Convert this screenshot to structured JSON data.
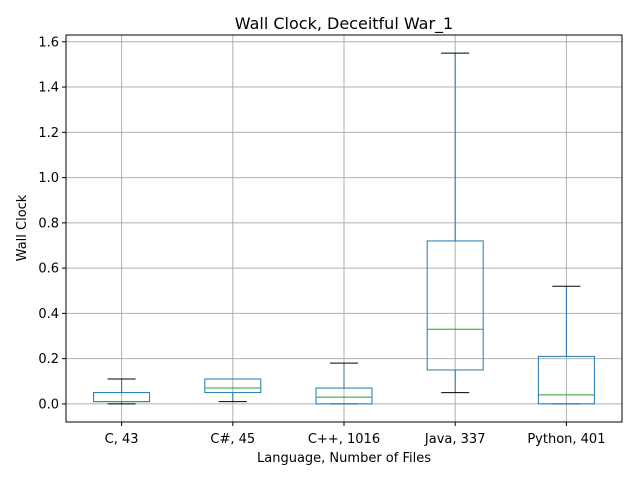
{
  "chart_data": {
    "type": "box",
    "title": "Wall Clock, Deceitful War_1",
    "xlabel": "Language, Number of Files",
    "ylabel": "Wall Clock",
    "ylim": [
      -0.08,
      1.63
    ],
    "yticks": [
      "0.0",
      "0.2",
      "0.4",
      "0.6",
      "0.8",
      "1.0",
      "1.2",
      "1.4",
      "1.6"
    ],
    "grid": true,
    "categories": [
      "C, 43",
      "C#, 45",
      "C++, 1016",
      "Java, 337",
      "Python, 401"
    ],
    "boxes": [
      {
        "category": "C, 43",
        "whisker_low": 0.0,
        "q1": 0.01,
        "median": 0.01,
        "q3": 0.05,
        "whisker_high": 0.11
      },
      {
        "category": "C#, 45",
        "whisker_low": 0.01,
        "q1": 0.05,
        "median": 0.07,
        "q3": 0.11,
        "whisker_high": 0.11
      },
      {
        "category": "C++, 1016",
        "whisker_low": 0.0,
        "q1": 0.0,
        "median": 0.03,
        "q3": 0.07,
        "whisker_high": 0.18
      },
      {
        "category": "Java, 337",
        "whisker_low": 0.05,
        "q1": 0.15,
        "median": 0.33,
        "q3": 0.72,
        "whisker_high": 1.55
      },
      {
        "category": "Python, 401",
        "whisker_low": 0.0,
        "q1": 0.0,
        "median": 0.04,
        "q3": 0.21,
        "whisker_high": 0.52
      }
    ],
    "colors": {
      "box": "#1f77b4",
      "median": "#2ca02c",
      "cap": "#000000",
      "grid": "#b0b0b0"
    }
  }
}
